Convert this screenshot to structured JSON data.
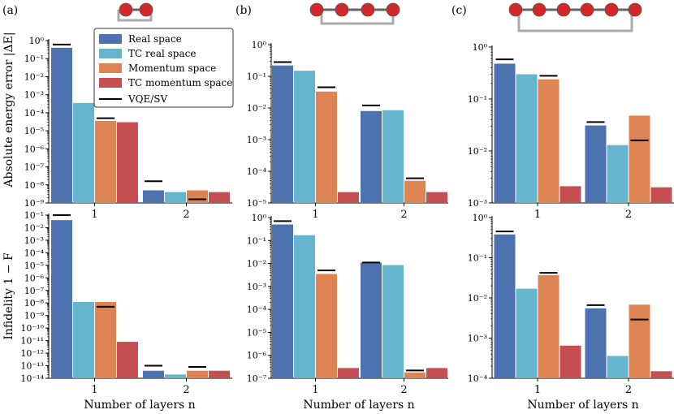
{
  "colors": {
    "real_space": "#4c72b0",
    "tc_real_space": "#64b5cd",
    "momentum_space": "#dd8452",
    "tc_momentum_space": "#c44e52",
    "vqe_marker": "#000000",
    "molecule_atom": "#d62728",
    "molecule_bond": "#aaaaaa"
  },
  "labels": {
    "panel_a": "(a)",
    "panel_b": "(b)",
    "panel_c": "(c)",
    "ylabel_top": "Absolute energy error |ΔE|",
    "ylabel_bottom": "Infidelity 1 − F",
    "xlabel": "Number of layers n"
  },
  "legend": {
    "entries": [
      {
        "key": "real_space",
        "label": "Real space"
      },
      {
        "key": "tc_real_space",
        "label": "TC real space"
      },
      {
        "key": "momentum_space",
        "label": "Momentum space"
      },
      {
        "key": "tc_momentum_space",
        "label": "TC momentum space"
      },
      {
        "key": "vqe_sv",
        "label": "VQE/SV"
      }
    ]
  },
  "chart_data": [
    {
      "id": "a-energy",
      "type": "bar",
      "panel": "a",
      "metric": "energy",
      "categories": [
        "1",
        "2"
      ],
      "yscale": "log",
      "ylim_exp": [
        -9,
        0
      ],
      "series": [
        {
          "key": "real_space",
          "name": "Real space",
          "values": [
            0.4,
            5e-09
          ]
        },
        {
          "key": "tc_real_space",
          "name": "TC real space",
          "values": [
            0.00035,
            4e-09
          ]
        },
        {
          "key": "momentum_space",
          "name": "Momentum space",
          "values": [
            3.5e-05,
            5e-09
          ]
        },
        {
          "key": "tc_momentum_space",
          "name": "TC momentum space",
          "values": [
            3e-05,
            4e-09
          ]
        }
      ],
      "vqe_sv": [
        [
          0.6,
          null,
          5e-05,
          null
        ],
        [
          1.6e-08,
          null,
          1.6e-09,
          null
        ]
      ]
    },
    {
      "id": "b-energy",
      "type": "bar",
      "panel": "b",
      "metric": "energy",
      "categories": [
        "1",
        "2"
      ],
      "yscale": "log",
      "ylim_exp": [
        -5,
        0
      ],
      "series": [
        {
          "key": "real_space",
          "name": "Real space",
          "values": [
            0.22,
            0.008
          ]
        },
        {
          "key": "tc_real_space",
          "name": "TC real space",
          "values": [
            0.15,
            0.0085
          ]
        },
        {
          "key": "momentum_space",
          "name": "Momentum space",
          "values": [
            0.033,
            5e-05
          ]
        },
        {
          "key": "tc_momentum_space",
          "name": "TC momentum space",
          "values": [
            2.2e-05,
            2.2e-05
          ]
        }
      ],
      "vqe_sv": [
        [
          0.28,
          null,
          0.045,
          null
        ],
        [
          0.012,
          null,
          6e-05,
          null
        ]
      ]
    },
    {
      "id": "c-energy",
      "type": "bar",
      "panel": "c",
      "metric": "energy",
      "categories": [
        "1",
        "2"
      ],
      "yscale": "log",
      "ylim_exp": [
        -3,
        0
      ],
      "series": [
        {
          "key": "real_space",
          "name": "Real space",
          "values": [
            0.48,
            0.031
          ]
        },
        {
          "key": "tc_real_space",
          "name": "TC real space",
          "values": [
            0.3,
            0.013
          ]
        },
        {
          "key": "momentum_space",
          "name": "Momentum space",
          "values": [
            0.24,
            0.048
          ]
        },
        {
          "key": "tc_momentum_space",
          "name": "TC momentum space",
          "values": [
            0.0021,
            0.002
          ]
        }
      ],
      "vqe_sv": [
        [
          0.58,
          null,
          0.28,
          null
        ],
        [
          0.036,
          null,
          0.016,
          null
        ]
      ]
    },
    {
      "id": "a-infidelity",
      "type": "bar",
      "panel": "a",
      "metric": "infidelity",
      "categories": [
        "1",
        "2"
      ],
      "yscale": "log",
      "ylim_exp": [
        -14,
        -1
      ],
      "series": [
        {
          "key": "real_space",
          "name": "Real space",
          "values": [
            0.04,
            4e-14
          ]
        },
        {
          "key": "tc_real_space",
          "name": "TC real space",
          "values": [
            1.2e-08,
            2e-14
          ]
        },
        {
          "key": "momentum_space",
          "name": "Momentum space",
          "values": [
            1.2e-08,
            4e-14
          ]
        },
        {
          "key": "tc_momentum_space",
          "name": "TC momentum space",
          "values": [
            8e-12,
            4e-14
          ]
        }
      ],
      "vqe_sv": [
        [
          0.1,
          null,
          5e-09,
          null
        ],
        [
          1e-13,
          null,
          8e-14,
          null
        ]
      ]
    },
    {
      "id": "b-infidelity",
      "type": "bar",
      "panel": "b",
      "metric": "infidelity",
      "categories": [
        "1",
        "2"
      ],
      "yscale": "log",
      "ylim_exp": [
        -7,
        0
      ],
      "series": [
        {
          "key": "real_space",
          "name": "Real space",
          "values": [
            0.5,
            0.011
          ]
        },
        {
          "key": "tc_real_space",
          "name": "TC real space",
          "values": [
            0.17,
            0.0085
          ]
        },
        {
          "key": "momentum_space",
          "name": "Momentum space",
          "values": [
            0.0035,
            1.8e-07
          ]
        },
        {
          "key": "tc_momentum_space",
          "name": "TC momentum space",
          "values": [
            2.8e-07,
            2.8e-07
          ]
        }
      ],
      "vqe_sv": [
        [
          0.7,
          null,
          0.005,
          null
        ],
        [
          0.011,
          null,
          2.2e-07,
          null
        ]
      ]
    },
    {
      "id": "c-infidelity",
      "type": "bar",
      "panel": "c",
      "metric": "infidelity",
      "categories": [
        "1",
        "2"
      ],
      "yscale": "log",
      "ylim_exp": [
        -4,
        0
      ],
      "series": [
        {
          "key": "real_space",
          "name": "Real space",
          "values": [
            0.38,
            0.0055
          ]
        },
        {
          "key": "tc_real_space",
          "name": "TC real space",
          "values": [
            0.017,
            0.00036
          ]
        },
        {
          "key": "momentum_space",
          "name": "Momentum space",
          "values": [
            0.037,
            0.0068
          ]
        },
        {
          "key": "tc_momentum_space",
          "name": "TC momentum space",
          "values": [
            0.00065,
            0.00015
          ]
        }
      ],
      "vqe_sv": [
        [
          0.45,
          null,
          0.042,
          null
        ],
        [
          0.0066,
          null,
          0.0029,
          null
        ]
      ]
    }
  ]
}
